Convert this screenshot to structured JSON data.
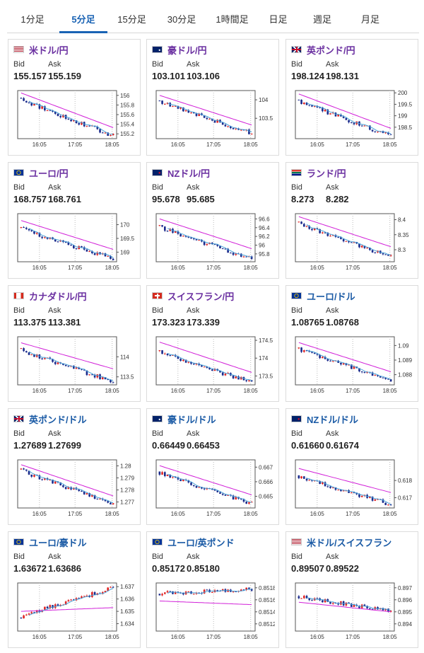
{
  "tabs": [
    {
      "label": "1分足",
      "active": false
    },
    {
      "label": "5分足",
      "active": true
    },
    {
      "label": "15分足",
      "active": false
    },
    {
      "label": "30分足",
      "active": false
    },
    {
      "label": "1時間足",
      "active": false
    },
    {
      "label": "日足",
      "active": false
    },
    {
      "label": "週足",
      "active": false
    },
    {
      "label": "月足",
      "active": false
    }
  ],
  "labels": {
    "bid": "Bid",
    "ask": "Ask"
  },
  "colors": {
    "up": "#e02424",
    "down": "#1a2a8c",
    "ma_long": "#d11ed8",
    "ma_short": "#4aa3d8",
    "pair_purple": "#6a2fa0",
    "pair_blue": "#1a5aa5",
    "tab_active": "#1a63b4"
  },
  "quotes": [
    {
      "pair": "米ドル/円",
      "pair_color": "purple",
      "flags": [
        "us-flag",
        "jp-flag"
      ],
      "bid": "155.157",
      "ask": "155.159",
      "chart_data": {
        "type": "candlestick",
        "x_ticks": [
          "16:05",
          "17:05",
          "18:05"
        ],
        "y_ticks": [
          "156",
          "155.8",
          "155.6",
          "155.4",
          "155.2"
        ],
        "y_tick_values": [
          156,
          155.8,
          155.6,
          155.4,
          155.2
        ],
        "ylim": [
          155.1,
          156.1
        ],
        "start": 155.95,
        "end": 155.16,
        "ma_start": 156.05,
        "ma_end": 155.33
      }
    },
    {
      "pair": "豪ドル/円",
      "pair_color": "purple",
      "flags": [
        "au-flag",
        "jp-flag"
      ],
      "bid": "103.101",
      "ask": "103.106",
      "chart_data": {
        "type": "candlestick",
        "x_ticks": [
          "16:05",
          "17:05",
          "18:05"
        ],
        "y_ticks": [
          "104",
          "103.5"
        ],
        "y_tick_values": [
          104,
          103.5
        ],
        "ylim": [
          102.95,
          104.25
        ],
        "start": 103.98,
        "end": 103.1,
        "ma_start": 104.12,
        "ma_end": 103.32
      }
    },
    {
      "pair": "英ポンド/円",
      "pair_color": "purple",
      "flags": [
        "uk-flag",
        "jp-flag"
      ],
      "bid": "198.124",
      "ask": "198.131",
      "chart_data": {
        "type": "candlestick",
        "x_ticks": [
          "16:05",
          "17:05",
          "18:05"
        ],
        "y_ticks": [
          "200",
          "199.5",
          "199",
          "198.5"
        ],
        "y_tick_values": [
          200,
          199.5,
          199,
          198.5
        ],
        "ylim": [
          198.0,
          200.1
        ],
        "start": 199.7,
        "end": 198.12,
        "ma_start": 199.95,
        "ma_end": 198.45
      }
    },
    {
      "pair": "ユーロ/円",
      "pair_color": "purple",
      "flags": [
        "eu-flag",
        "jp-flag"
      ],
      "bid": "168.757",
      "ask": "168.761",
      "chart_data": {
        "type": "candlestick",
        "x_ticks": [
          "16:05",
          "17:05",
          "18:05"
        ],
        "y_ticks": [
          "170",
          "169.5",
          "169"
        ],
        "y_tick_values": [
          170,
          169.5,
          169
        ],
        "ylim": [
          168.65,
          170.4
        ],
        "start": 169.9,
        "end": 168.76,
        "ma_start": 170.15,
        "ma_end": 169.1
      }
    },
    {
      "pair": "NZドル/円",
      "pair_color": "purple",
      "flags": [
        "nz-flag",
        "jp-flag"
      ],
      "bid": "95.678",
      "ask": "95.685",
      "chart_data": {
        "type": "candlestick",
        "x_ticks": [
          "16:05",
          "17:05",
          "18:05"
        ],
        "y_ticks": [
          "96.6",
          "96.4",
          "96.2",
          "96",
          "95.8"
        ],
        "y_tick_values": [
          96.6,
          96.4,
          96.2,
          96,
          95.8
        ],
        "ylim": [
          95.62,
          96.72
        ],
        "start": 96.45,
        "end": 95.68,
        "ma_start": 96.6,
        "ma_end": 95.92
      }
    },
    {
      "pair": "ランド/円",
      "pair_color": "purple",
      "flags": [
        "za-flag",
        "jp-flag"
      ],
      "bid": "8.273",
      "ask": "8.282",
      "chart_data": {
        "type": "candlestick",
        "x_ticks": [
          "16:05",
          "17:05",
          "18:05"
        ],
        "y_ticks": [
          "8.4",
          "8.35",
          "8.3"
        ],
        "y_tick_values": [
          8.4,
          8.35,
          8.3
        ],
        "ylim": [
          8.26,
          8.42
        ],
        "start": 8.392,
        "end": 8.276,
        "ma_start": 8.41,
        "ma_end": 8.31
      }
    },
    {
      "pair": "カナダドル/円",
      "pair_color": "purple",
      "flags": [
        "ca-flag",
        "jp-flag"
      ],
      "bid": "113.375",
      "ask": "113.381",
      "chart_data": {
        "type": "candlestick",
        "x_ticks": [
          "16:05",
          "17:05",
          "18:05"
        ],
        "y_ticks": [
          "114",
          "113.5"
        ],
        "y_tick_values": [
          114,
          113.5
        ],
        "ylim": [
          113.3,
          114.5
        ],
        "start": 114.2,
        "end": 113.38,
        "ma_start": 114.35,
        "ma_end": 113.7
      }
    },
    {
      "pair": "スイスフラン/円",
      "pair_color": "purple",
      "flags": [
        "ch-flag",
        "jp-flag"
      ],
      "bid": "173.323",
      "ask": "173.339",
      "chart_data": {
        "type": "candlestick",
        "x_ticks": [
          "16:05",
          "17:05",
          "18:05"
        ],
        "y_ticks": [
          "174.5",
          "174",
          "173.5"
        ],
        "y_tick_values": [
          174.5,
          174,
          173.5
        ],
        "ylim": [
          173.25,
          174.6
        ],
        "start": 174.2,
        "end": 173.32,
        "ma_start": 174.45,
        "ma_end": 173.6
      }
    },
    {
      "pair": "ユーロ/ドル",
      "pair_color": "blue",
      "flags": [
        "eu-flag",
        "us-flag"
      ],
      "bid": "1.08765",
      "ask": "1.08768",
      "chart_data": {
        "type": "candlestick",
        "x_ticks": [
          "16:05",
          "17:05",
          "18:05"
        ],
        "y_ticks": [
          "1.09",
          "1.089",
          "1.088"
        ],
        "y_tick_values": [
          1.09,
          1.089,
          1.088
        ],
        "ylim": [
          1.0873,
          1.0906
        ],
        "start": 1.0898,
        "end": 1.08765,
        "ma_start": 1.0902,
        "ma_end": 1.0882
      }
    },
    {
      "pair": "英ポンド/ドル",
      "pair_color": "blue",
      "flags": [
        "uk-flag",
        "us-flag"
      ],
      "bid": "1.27689",
      "ask": "1.27699",
      "chart_data": {
        "type": "candlestick",
        "x_ticks": [
          "16:05",
          "17:05",
          "18:05"
        ],
        "y_ticks": [
          "1.28",
          "1.279",
          "1.278",
          "1.277"
        ],
        "y_tick_values": [
          1.28,
          1.279,
          1.278,
          1.277
        ],
        "ylim": [
          1.2765,
          1.2805
        ],
        "start": 1.2797,
        "end": 1.27689,
        "ma_start": 1.2801,
        "ma_end": 1.2775
      }
    },
    {
      "pair": "豪ドル/ドル",
      "pair_color": "blue",
      "flags": [
        "au-flag",
        "us-flag"
      ],
      "bid": "0.66449",
      "ask": "0.66453",
      "chart_data": {
        "type": "candlestick",
        "x_ticks": [
          "16:05",
          "17:05",
          "18:05"
        ],
        "y_ticks": [
          "0.667",
          "0.666",
          "0.665"
        ],
        "y_tick_values": [
          0.667,
          0.666,
          0.665
        ],
        "ylim": [
          0.6642,
          0.6675
        ],
        "start": 0.6667,
        "end": 0.66449,
        "ma_start": 0.6671,
        "ma_end": 0.6651
      }
    },
    {
      "pair": "NZドル/ドル",
      "pair_color": "blue",
      "flags": [
        "nz-flag",
        "us-flag"
      ],
      "bid": "0.61660",
      "ask": "0.61674",
      "chart_data": {
        "type": "candlestick",
        "x_ticks": [
          "16:05",
          "17:05",
          "18:05"
        ],
        "y_ticks": [
          "0.618",
          "0.617"
        ],
        "y_tick_values": [
          0.618,
          0.617
        ],
        "ylim": [
          0.6164,
          0.6192
        ],
        "start": 0.6183,
        "end": 0.6166,
        "ma_start": 0.6187,
        "ma_end": 0.6173
      }
    },
    {
      "pair": "ユーロ/豪ドル",
      "pair_color": "blue",
      "flags": [
        "eu-flag",
        "au-flag"
      ],
      "bid": "1.63672",
      "ask": "1.63686",
      "chart_data": {
        "type": "candlestick",
        "x_ticks": [
          "16:05",
          "17:05",
          "18:05"
        ],
        "y_ticks": [
          "1.637",
          "1.636",
          "1.635",
          "1.634"
        ],
        "y_tick_values": [
          1.637,
          1.636,
          1.635,
          1.634
        ],
        "ylim": [
          1.6334,
          1.6373
        ],
        "start": 1.6345,
        "end": 1.6369,
        "ma_start": 1.635,
        "ma_end": 1.6353
      }
    },
    {
      "pair": "ユーロ/英ポンド",
      "pair_color": "blue",
      "flags": [
        "eu-flag",
        "uk-flag"
      ],
      "bid": "0.85172",
      "ask": "0.85180",
      "chart_data": {
        "type": "candlestick",
        "x_ticks": [
          "16:05",
          "17:05",
          "18:05"
        ],
        "y_ticks": [
          "0.8518",
          "0.8516",
          "0.8514",
          "0.8512"
        ],
        "y_tick_values": [
          0.8518,
          0.8516,
          0.8514,
          0.8512
        ],
        "ylim": [
          0.85108,
          0.85188
        ],
        "start": 0.8517,
        "end": 0.85178,
        "ma_start": 0.85158,
        "ma_end": 0.85152
      }
    },
    {
      "pair": "米ドル/スイスフラン",
      "pair_color": "blue",
      "flags": [
        "us-flag",
        "ch-flag"
      ],
      "bid": "0.89507",
      "ask": "0.89522",
      "chart_data": {
        "type": "candlestick",
        "x_ticks": [
          "16:05",
          "17:05",
          "18:05"
        ],
        "y_ticks": [
          "0.897",
          "0.896",
          "0.895",
          "0.894"
        ],
        "y_tick_values": [
          0.897,
          0.896,
          0.895,
          0.894
        ],
        "ylim": [
          0.8934,
          0.8974
        ],
        "start": 0.8963,
        "end": 0.8951,
        "ma_start": 0.8958,
        "ma_end": 0.895
      }
    }
  ]
}
